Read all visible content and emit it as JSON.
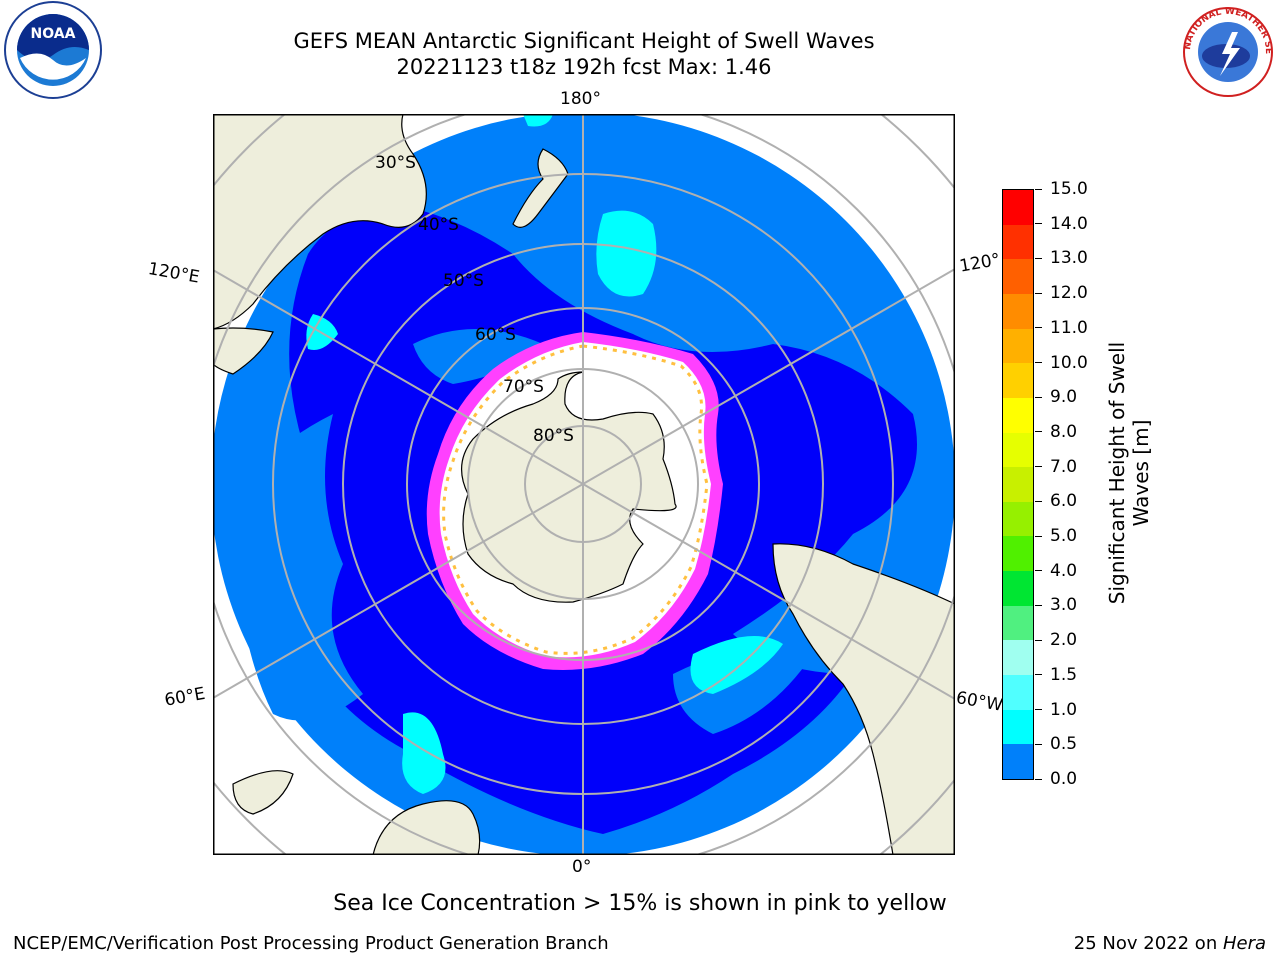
{
  "title": {
    "line1": "GEFS MEAN Antarctic Significant Height of Swell Waves",
    "line2": "20221123 t18z 192h fcst   Max: 1.46"
  },
  "logos": {
    "noaa_text": "NOAA",
    "nws_text": "NATIONAL WEATHER SERVICE"
  },
  "map": {
    "projection": "south-polar-stereographic",
    "lon_labels": {
      "top": "180°",
      "bottom": "0°",
      "left_upper": "120°E",
      "left_lower": "60°E",
      "right_upper": "120°",
      "right_lower": "60°W"
    },
    "lat_labels": [
      "30°S",
      "40°S",
      "50°S",
      "60°S",
      "70°S",
      "80°S"
    ],
    "colors": {
      "land": "#eeeedc",
      "ocean_0": "#0000fa",
      "ocean_05": "#0080fa",
      "ocean_1": "#00ffff",
      "ice_white": "#ffffff",
      "ice_edge_pink": "#ff40ff",
      "ice_edge_yellow": "#ffc040",
      "grid": "#b0b0b0"
    }
  },
  "colorbar": {
    "label": "Significant Height of Swell Waves [m]",
    "label_line1": "Significant Height of Swell",
    "label_line2": "Waves [m]",
    "ticks": [
      "15.0",
      "14.0",
      "13.0",
      "12.0",
      "11.0",
      "10.0",
      "9.0",
      "8.0",
      "7.0",
      "6.0",
      "5.0",
      "4.0",
      "3.0",
      "2.0",
      "1.5",
      "1.0",
      "0.5",
      "0.0"
    ],
    "colors": [
      "#ff0000",
      "#ff3000",
      "#ff6000",
      "#ff8c00",
      "#ffb000",
      "#ffd000",
      "#ffff00",
      "#e6ff00",
      "#c8f000",
      "#96f000",
      "#50f000",
      "#00e632",
      "#50f080",
      "#a0fff0",
      "#50ffff",
      "#00ffff",
      "#0080fa",
      "#0000fa"
    ]
  },
  "note": "Sea Ice Concentration > 15% is shown in pink to yellow",
  "footer": {
    "left": "NCEP/EMC/Verification Post Processing Product Generation Branch",
    "right_date": "25 Nov 2022 on ",
    "right_host": "Hera"
  }
}
